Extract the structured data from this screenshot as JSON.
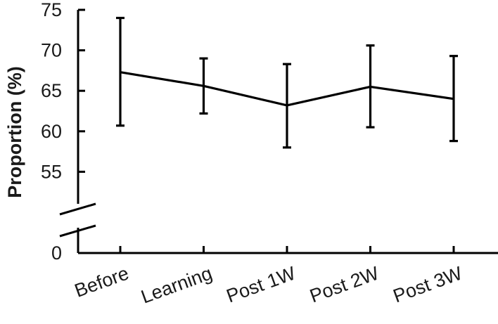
{
  "chart_data": {
    "type": "line",
    "ylabel": "Proportion (%)",
    "xlabel": "",
    "categories": [
      "Before",
      "Learning",
      "Post 1W",
      "Post 2W",
      "Post 3W"
    ],
    "y_ticks": [
      0,
      55,
      60,
      65,
      70,
      75
    ],
    "y_tick_labels": [
      "0",
      "55",
      "60",
      "65",
      "70",
      "75"
    ],
    "ylim": [
      50,
      75
    ],
    "axis_break": true,
    "series": [
      {
        "values": [
          67.3,
          65.6,
          63.2,
          65.5,
          64.0
        ],
        "error_upper": [
          74.0,
          69.0,
          68.3,
          70.6,
          69.3
        ],
        "error_lower": [
          60.7,
          62.2,
          58.0,
          60.5,
          58.8
        ],
        "color": "#000000"
      }
    ],
    "grid": false
  }
}
